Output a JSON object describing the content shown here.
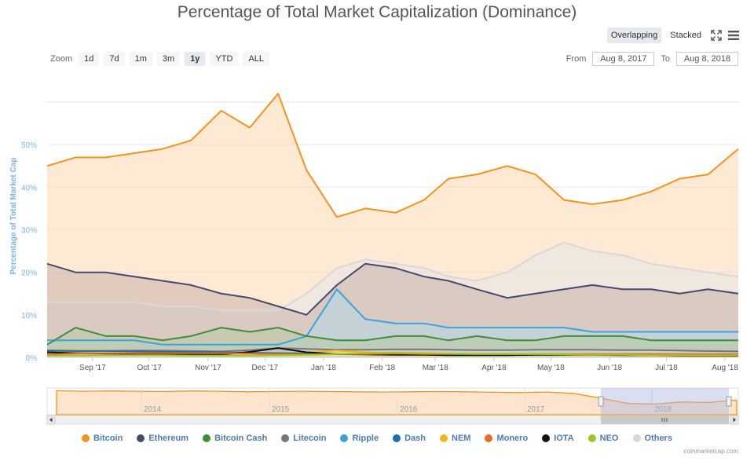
{
  "title": "Percentage of Total Market Capitalization (Dominance)",
  "modes": {
    "overlapping": "Overlapping",
    "stacked": "Stacked"
  },
  "zoom": {
    "label": "Zoom",
    "buttons": [
      "1d",
      "7d",
      "1m",
      "3m",
      "1y",
      "YTD",
      "ALL"
    ],
    "active": "1y"
  },
  "range": {
    "from_label": "From",
    "from_value": "Aug 8, 2017",
    "to_label": "To",
    "to_value": "Aug 8, 2018"
  },
  "credit": "coinmarketcap.com",
  "icons": {
    "fullscreen": "fullscreen-icon",
    "menu": "hamburger-menu-icon",
    "scroll_left": "arrow-left-icon",
    "scroll_right": "arrow-right-icon",
    "grip": "grip-icon"
  },
  "navigator": {
    "years": [
      "2014",
      "2015",
      "2016",
      "2017",
      "2018"
    ]
  },
  "chart_data": {
    "type": "area",
    "ylabel": "Percentage of Total Market Cap",
    "ylim": [
      0,
      60
    ],
    "y_ticks": [
      "0%",
      "10%",
      "20%",
      "30%",
      "40%",
      "50%"
    ],
    "x_ticks": [
      "Sep '17",
      "Oct '17",
      "Nov '17",
      "Dec '17",
      "Jan '18",
      "Feb '18",
      "Mar '18",
      "Apr '18",
      "May '18",
      "Jun '18",
      "Jul '18",
      "Aug '18"
    ],
    "grid": true,
    "legend_position": "bottom",
    "x": [
      "2017-08-08",
      "2017-08-23",
      "2017-09-08",
      "2017-09-23",
      "2017-10-08",
      "2017-10-23",
      "2017-11-08",
      "2017-11-23",
      "2017-12-08",
      "2017-12-23",
      "2018-01-08",
      "2018-01-23",
      "2018-02-08",
      "2018-02-23",
      "2018-03-08",
      "2018-03-23",
      "2018-04-08",
      "2018-04-23",
      "2018-05-08",
      "2018-05-23",
      "2018-06-08",
      "2018-06-23",
      "2018-07-08",
      "2018-07-23",
      "2018-08-08"
    ],
    "series": [
      {
        "name": "Bitcoin",
        "color": "#f7931a",
        "fill": "#fcd7b0",
        "values": [
          45,
          47,
          47,
          48,
          49,
          51,
          58,
          54,
          62,
          44,
          33,
          35,
          34,
          37,
          42,
          43,
          45,
          43,
          37,
          36,
          37,
          39,
          42,
          43,
          49
        ]
      },
      {
        "name": "Ethereum",
        "color": "#444b6e",
        "fill": "#c9b3ac",
        "values": [
          22,
          20,
          20,
          19,
          18,
          17,
          15,
          14,
          12,
          10,
          17,
          22,
          21,
          19,
          18,
          16,
          14,
          15,
          16,
          17,
          16,
          16,
          15,
          16,
          15
        ]
      },
      {
        "name": "Bitcoin Cash",
        "color": "#3e8e3b",
        "fill": "#b8c9a2",
        "values": [
          3,
          7,
          5,
          5,
          4,
          5,
          7,
          6,
          7,
          5,
          4,
          4,
          5,
          5,
          4,
          5,
          4,
          4,
          5,
          5,
          5,
          4,
          4,
          4,
          4
        ]
      },
      {
        "name": "Litecoin",
        "color": "#777777",
        "fill": "#d4d4d4",
        "values": [
          1.5,
          1.5,
          1.6,
          1.6,
          1.6,
          1.5,
          1.4,
          1.7,
          2.2,
          2.0,
          1.8,
          1.8,
          1.9,
          1.9,
          1.8,
          1.7,
          1.7,
          1.8,
          1.8,
          1.8,
          1.7,
          1.7,
          1.6,
          1.5,
          1.4
        ]
      },
      {
        "name": "Ripple",
        "color": "#3aa4d8",
        "fill": "#b3d9ea",
        "values": [
          4,
          4,
          4,
          4,
          3,
          3,
          3,
          3,
          3,
          5,
          16,
          9,
          8,
          8,
          7,
          7,
          7,
          7,
          7,
          6,
          6,
          6,
          6,
          6,
          6
        ]
      },
      {
        "name": "Dash",
        "color": "#1a6fb8",
        "fill": "#b3cfe8",
        "values": [
          1.6,
          1.5,
          1.5,
          1.4,
          1.3,
          1.3,
          1.2,
          1.1,
          1.0,
          0.9,
          0.8,
          0.8,
          0.8,
          0.8,
          0.7,
          0.7,
          0.7,
          0.7,
          0.7,
          0.7,
          0.6,
          0.6,
          0.6,
          0.6,
          0.6
        ]
      },
      {
        "name": "NEM",
        "color": "#f2b51a",
        "fill": "#f8e2a6",
        "values": [
          1.7,
          1.7,
          1.6,
          1.4,
          1.2,
          1.0,
          0.9,
          0.9,
          1.0,
          1.2,
          1.6,
          1.2,
          1.0,
          0.9,
          0.8,
          0.8,
          0.7,
          0.7,
          0.7,
          0.6,
          0.6,
          0.5,
          0.5,
          0.5,
          0.4
        ]
      },
      {
        "name": "Monero",
        "color": "#f26822",
        "fill": "#f9c7a8",
        "values": [
          0.7,
          0.9,
          1.0,
          1.0,
          1.0,
          1.0,
          1.0,
          0.9,
          0.8,
          0.7,
          0.8,
          0.8,
          0.9,
          0.8,
          0.8,
          0.8,
          0.8,
          0.8,
          0.8,
          0.8,
          0.8,
          0.8,
          0.8,
          0.8,
          0.8
        ]
      },
      {
        "name": "IOTA",
        "color": "#111111",
        "fill": "#bbbbbb",
        "values": [
          1.2,
          1.0,
          0.9,
          0.8,
          0.8,
          0.7,
          0.7,
          1.3,
          2.2,
          1.2,
          0.8,
          0.7,
          0.6,
          0.6,
          0.5,
          0.5,
          0.5,
          0.6,
          0.6,
          0.6,
          0.5,
          0.5,
          0.4,
          0.4,
          0.4
        ]
      },
      {
        "name": "NEO",
        "color": "#9ac91f",
        "fill": "#d9ebab",
        "values": [
          0.4,
          0.4,
          0.5,
          0.5,
          0.5,
          0.4,
          0.4,
          0.4,
          0.5,
          0.6,
          0.8,
          1.0,
          1.1,
          1.0,
          0.9,
          0.8,
          0.8,
          0.8,
          0.7,
          0.6,
          0.6,
          0.5,
          0.5,
          0.5,
          0.5
        ]
      },
      {
        "name": "Others",
        "color": "#d8d8d8",
        "fill": "#e6e6e6",
        "values": [
          13,
          13,
          13,
          13,
          12,
          12,
          11,
          11,
          11,
          15,
          21,
          23,
          22,
          21,
          19,
          18,
          20,
          24,
          27,
          25,
          24,
          22,
          21,
          20,
          19
        ]
      }
    ]
  }
}
